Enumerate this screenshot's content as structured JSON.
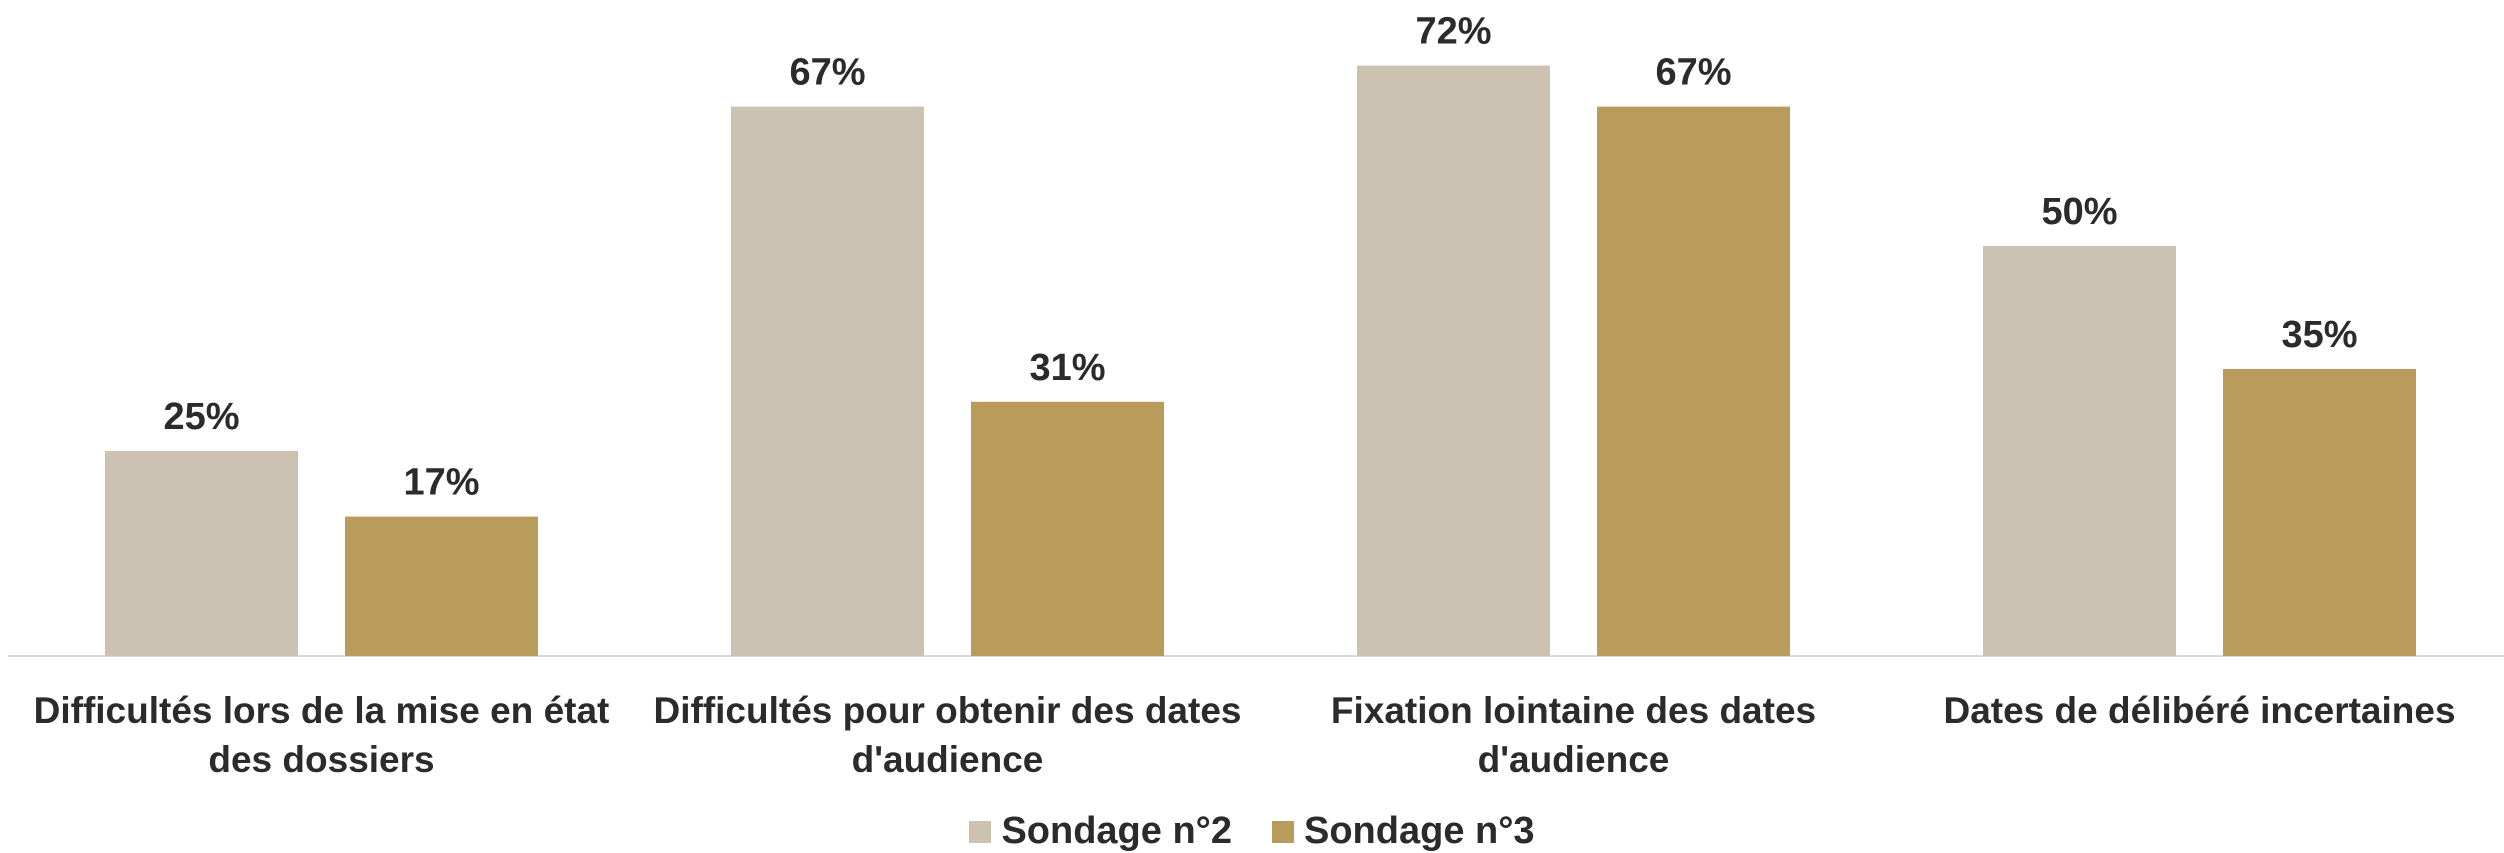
{
  "chart_data": {
    "type": "bar",
    "categories": [
      "Difficultés lors de la mise en état des dossiers",
      "Difficultés pour obtenir des dates d'audience",
      "Fixation lointaine des dates d'audience",
      "Dates de délibéré incertaines"
    ],
    "series": [
      {
        "name": "Sondage n°2",
        "color": "#cbc2b2",
        "values": [
          25,
          67,
          72,
          50
        ],
        "value_labels": [
          "25%",
          "67%",
          "72%",
          "50%"
        ]
      },
      {
        "name": "Sondage n°3",
        "color": "#b99b5b",
        "values": [
          17,
          31,
          67,
          35
        ],
        "value_labels": [
          "17%",
          "31%",
          "67%",
          "35%"
        ]
      }
    ],
    "ylim": [
      0,
      80
    ],
    "legend": "bottom"
  }
}
